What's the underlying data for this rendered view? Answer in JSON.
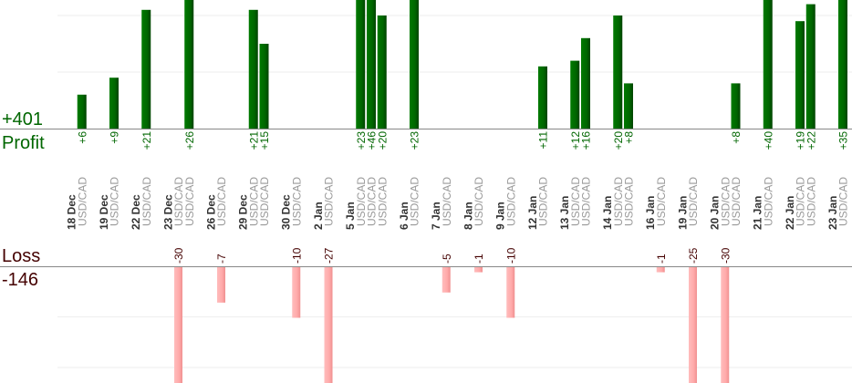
{
  "summary": {
    "profit_total": "+401",
    "profit_label": "Profit",
    "loss_label": "Loss",
    "loss_total": "-146"
  },
  "colors": {
    "profit": "#006600",
    "profit_text": "#006600",
    "loss": "#ffaaaa",
    "loss_text": "#440000",
    "date_text": "#333333",
    "pair_text": "#999999"
  },
  "chart_data": {
    "type": "bar",
    "grid": true,
    "profit_gridlines": [
      10,
      20
    ],
    "loss_gridlines": [
      -10,
      -20
    ],
    "groups": [
      {
        "date": "18 Dec",
        "trades": [
          {
            "pair": "USD/CAD",
            "value": 6
          }
        ]
      },
      {
        "date": "19 Dec",
        "trades": [
          {
            "pair": "USD/CAD",
            "value": 9
          }
        ]
      },
      {
        "date": "22 Dec",
        "trades": [
          {
            "pair": "USD/CAD",
            "value": 21
          }
        ]
      },
      {
        "date": "23 Dec",
        "trades": [
          {
            "pair": "USD/CAD",
            "value": -30
          },
          {
            "pair": "USD/CAD",
            "value": 26
          }
        ]
      },
      {
        "date": "26 Dec",
        "trades": [
          {
            "pair": "USD/CAD",
            "value": -7
          }
        ]
      },
      {
        "date": "29 Dec",
        "trades": [
          {
            "pair": "USD/CAD",
            "value": 21
          },
          {
            "pair": "USD/CAD",
            "value": 15
          }
        ]
      },
      {
        "date": "30 Dec",
        "trades": [
          {
            "pair": "USD/CAD",
            "value": -10
          }
        ]
      },
      {
        "date": "2 Jan",
        "trades": [
          {
            "pair": "USD/CAD",
            "value": -27
          }
        ]
      },
      {
        "date": "5 Jan",
        "trades": [
          {
            "pair": "USD/CAD",
            "value": 23
          },
          {
            "pair": "USD/CAD",
            "value": 46
          },
          {
            "pair": "USD/CAD",
            "value": 20
          }
        ]
      },
      {
        "date": "6 Jan",
        "trades": [
          {
            "pair": "USD/CAD",
            "value": 23
          }
        ]
      },
      {
        "date": "7 Jan",
        "trades": [
          {
            "pair": "USD/CAD",
            "value": -5
          }
        ]
      },
      {
        "date": "8 Jan",
        "trades": [
          {
            "pair": "USD/CAD",
            "value": -1
          }
        ]
      },
      {
        "date": "9 Jan",
        "trades": [
          {
            "pair": "USD/CAD",
            "value": -10
          }
        ]
      },
      {
        "date": "12 Jan",
        "trades": [
          {
            "pair": "USD/CAD",
            "value": 11
          }
        ]
      },
      {
        "date": "13 Jan",
        "trades": [
          {
            "pair": "USD/CAD",
            "value": 12
          },
          {
            "pair": "USD/CAD",
            "value": 16
          }
        ]
      },
      {
        "date": "14 Jan",
        "trades": [
          {
            "pair": "USD/CAD",
            "value": 20
          },
          {
            "pair": "USD/CAD",
            "value": 8
          }
        ]
      },
      {
        "date": "16 Jan",
        "trades": [
          {
            "pair": "USD/CAD",
            "value": -1
          }
        ]
      },
      {
        "date": "19 Jan",
        "trades": [
          {
            "pair": "USD/CAD",
            "value": -25
          }
        ]
      },
      {
        "date": "20 Jan",
        "trades": [
          {
            "pair": "USD/CAD",
            "value": -30
          },
          {
            "pair": "USD/CAD",
            "value": 8
          }
        ]
      },
      {
        "date": "21 Jan",
        "trades": [
          {
            "pair": "USD/CAD",
            "value": 40
          }
        ]
      },
      {
        "date": "22 Jan",
        "trades": [
          {
            "pair": "USD/CAD",
            "value": 19
          },
          {
            "pair": "USD/CAD",
            "value": 22
          }
        ]
      },
      {
        "date": "23 Jan",
        "trades": [
          {
            "pair": "USD/CAD",
            "value": 35
          }
        ]
      }
    ]
  }
}
